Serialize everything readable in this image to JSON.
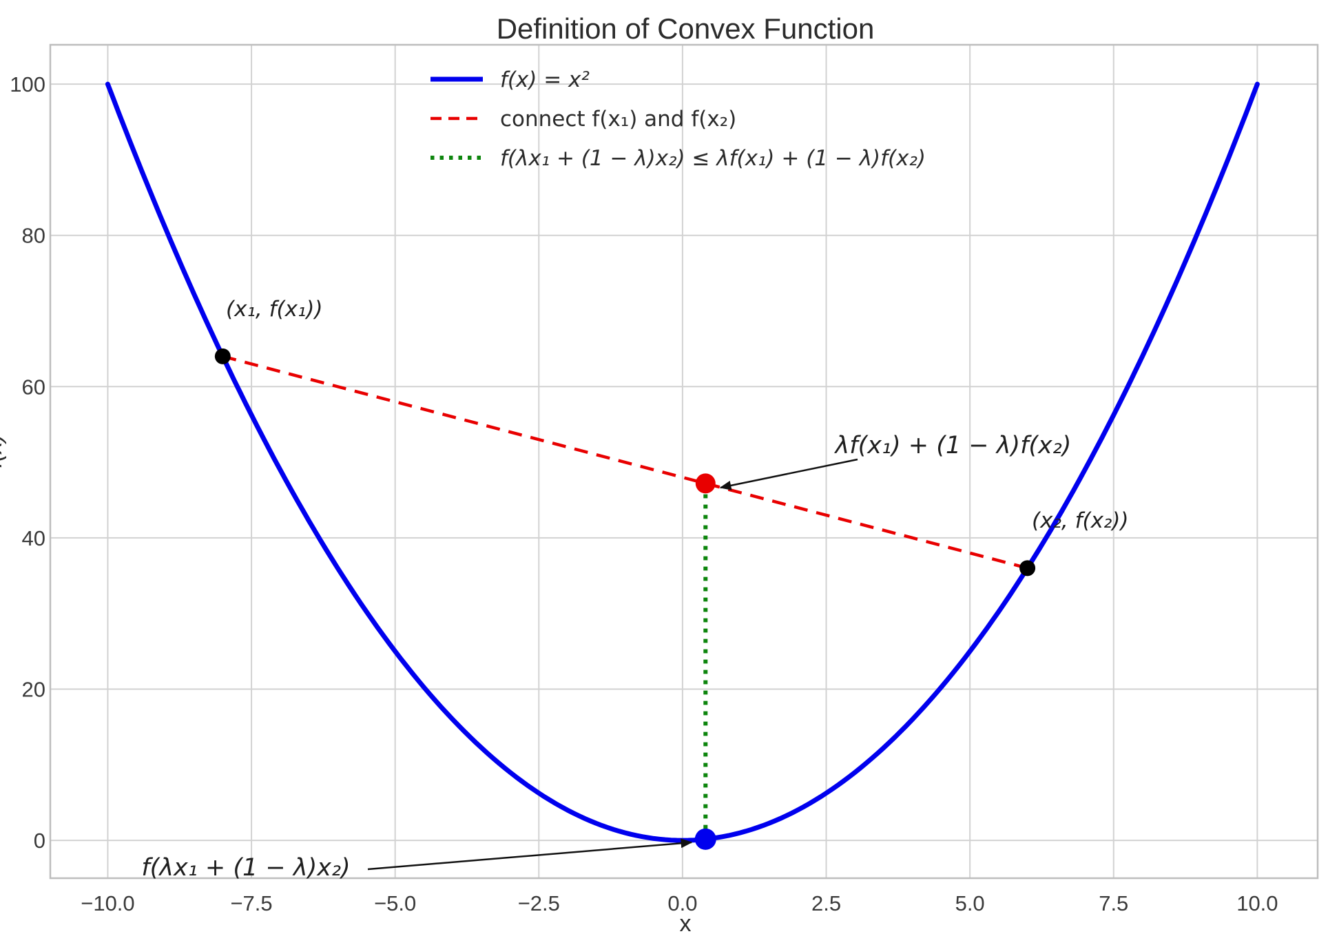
{
  "figure": {
    "title": "Definition of Convex Function",
    "xlabel": "x",
    "ylabel": "f(x)"
  },
  "legend": {
    "items": [
      {
        "label": "f(x) = x²",
        "color": "#0000ee",
        "style": "solid"
      },
      {
        "label": "connect f(x₁) and f(x₂)",
        "color": "#e80000",
        "style": "dashed"
      },
      {
        "label": "f(λx₁ + (1 − λ)x₂) ≤ λf(x₁) + (1 − λ)f(x₂)",
        "color": "#0d850d",
        "style": "dotted"
      }
    ]
  },
  "annotations": {
    "p1_label": "(x₁, f(x₁))",
    "p2_label": "(x₂, f(x₂))",
    "chord_point_label": "λf(x₁) + (1 − λ)f(x₂)",
    "curve_point_label": "f(λx₁ + (1 − λ)x₂)"
  },
  "chart_data": {
    "type": "line",
    "title": "Definition of Convex Function",
    "xlabel": "x",
    "ylabel": "f(x)",
    "function": "f(x) = x²",
    "x_range": [
      -10,
      10
    ],
    "xlim": [
      -11,
      11.05
    ],
    "ylim": [
      -5,
      105.2
    ],
    "x_ticks": [
      -10,
      -7.5,
      -5,
      -2.5,
      0,
      2.5,
      5,
      7.5,
      10
    ],
    "x_tick_labels": [
      "−10.0",
      "−7.5",
      "−5.0",
      "−2.5",
      "0.0",
      "2.5",
      "5.0",
      "7.5",
      "10.0"
    ],
    "y_ticks": [
      0,
      20,
      40,
      60,
      80,
      100
    ],
    "y_tick_labels": [
      "0",
      "20",
      "40",
      "60",
      "80",
      "100"
    ],
    "grid": true,
    "legend_position": "upper center, frameless",
    "curve_color": "#0000ee",
    "chord": {
      "from": {
        "x": -8,
        "y": 64
      },
      "to": {
        "x": 6,
        "y": 36
      },
      "color": "#e80000",
      "style": "dashed"
    },
    "vertical_segment": {
      "x": 0.4,
      "y_from": 0.16,
      "y_to": 47.2,
      "color": "#0d850d",
      "style": "dotted"
    },
    "points": [
      {
        "name": "x1-point",
        "x": -8,
        "y": 64,
        "color": "#000000",
        "r": 11.5
      },
      {
        "name": "x2-point",
        "x": 6,
        "y": 36,
        "color": "#000000",
        "r": 11.5
      },
      {
        "name": "chord-combination-point",
        "x": 0.4,
        "y": 47.2,
        "color": "#e80000",
        "r": 14.5
      },
      {
        "name": "curve-combination-point",
        "x": 0.4,
        "y": 0.16,
        "color": "#0000ee",
        "r": 15.5
      }
    ]
  }
}
